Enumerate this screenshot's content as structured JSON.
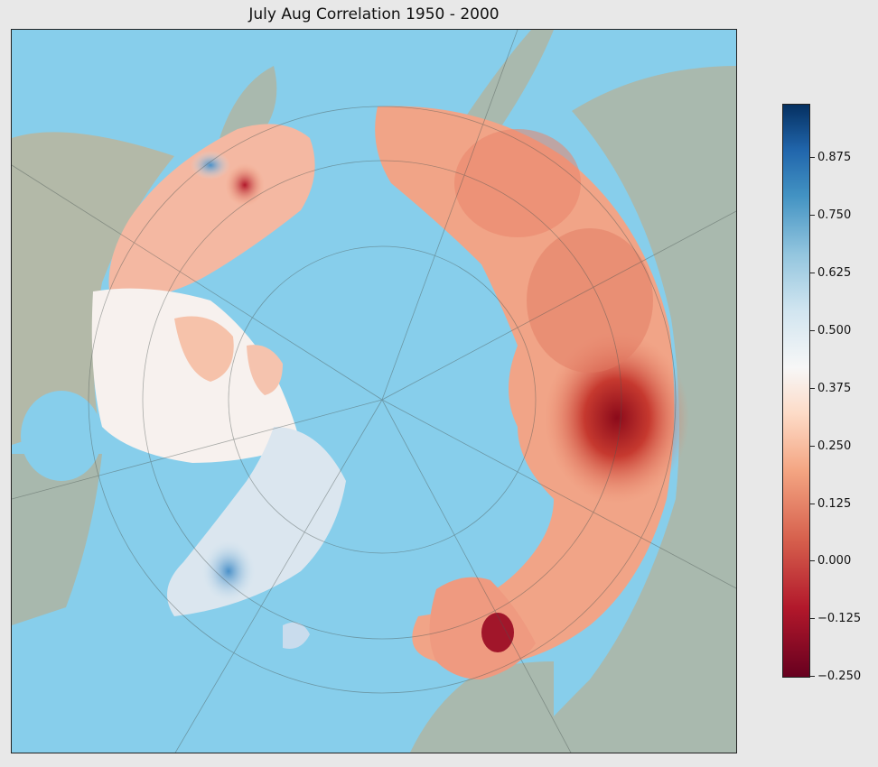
{
  "title": "July Aug Correlation 1950 - 2000",
  "colors": {
    "ocean": "#87ceeb",
    "land": "#a9b9ae",
    "cmap": "RdBu"
  },
  "colorbar": {
    "ticks": [
      "0.875",
      "0.750",
      "0.625",
      "0.500",
      "0.375",
      "0.250",
      "0.125",
      "0.000",
      "−0.125",
      "−0.250"
    ]
  }
}
